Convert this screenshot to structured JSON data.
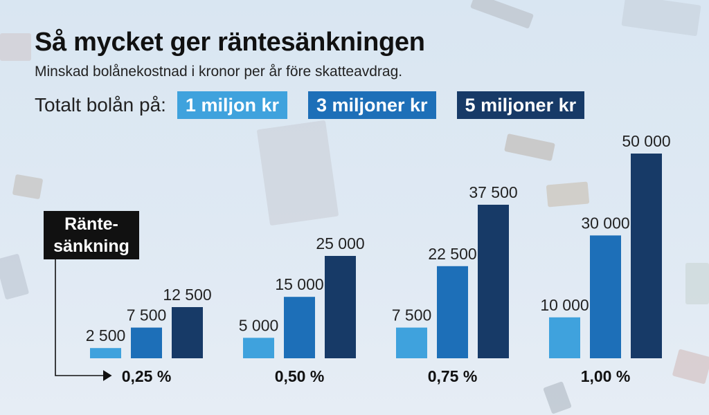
{
  "title": "Så mycket ger räntesänkningen",
  "subtitle": "Minskad bolånekostnad i kronor per år före skatteavdrag.",
  "legend": {
    "label": "Totalt bolån på:",
    "items": [
      {
        "label": "1 miljon kr",
        "color": "#3fa2dd"
      },
      {
        "label": "3 miljoner kr",
        "color": "#1d6fb8"
      },
      {
        "label": "5 miljoner kr",
        "color": "#173a67"
      }
    ]
  },
  "rate_label": {
    "line1": "Ränte-",
    "line2": "sänkning"
  },
  "chart_data": {
    "type": "bar",
    "categories": [
      "0,25 %",
      "0,50 %",
      "0,75 %",
      "1,00 %"
    ],
    "series": [
      {
        "name": "1 miljon kr",
        "values": [
          2500,
          5000,
          7500,
          10000
        ],
        "labels": [
          "2 500",
          "5 000",
          "7 500",
          "10 000"
        ],
        "color": "#3fa2dd"
      },
      {
        "name": "3 miljoner kr",
        "values": [
          7500,
          15000,
          22500,
          30000
        ],
        "labels": [
          "7 500",
          "15 000",
          "22 500",
          "30 000"
        ],
        "color": "#1d6fb8"
      },
      {
        "name": "5 miljoner kr",
        "values": [
          12500,
          25000,
          37500,
          50000
        ],
        "labels": [
          "12 500",
          "25 000",
          "37 500",
          "50 000"
        ],
        "color": "#173a67"
      }
    ],
    "title": "Så mycket ger räntesänkningen",
    "xlabel": "Räntesänkning",
    "ylabel": "",
    "ylim": [
      0,
      50000
    ],
    "grid": false,
    "legend_position": "top"
  }
}
